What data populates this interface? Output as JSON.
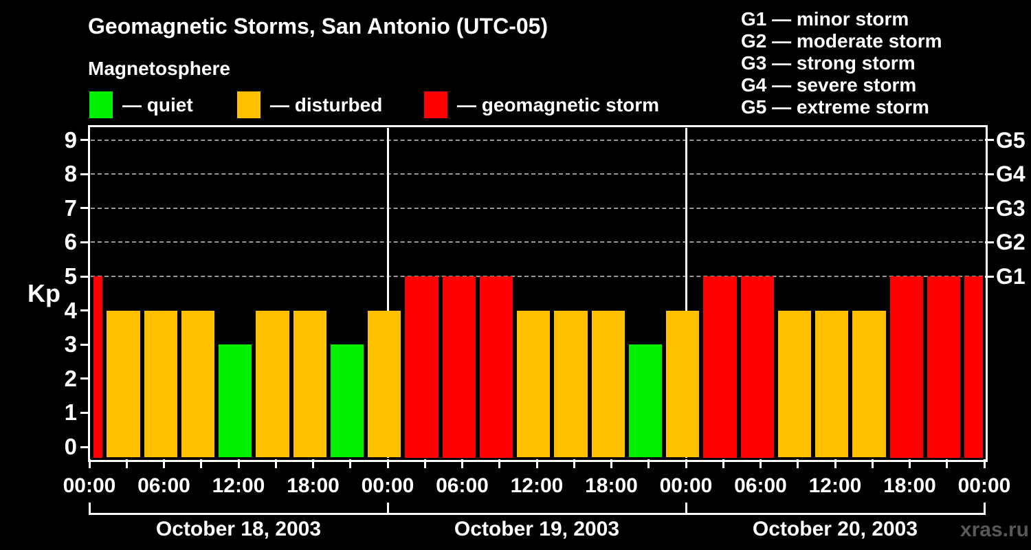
{
  "watermark": "xras.ru",
  "chart_data": {
    "type": "bar",
    "title": "Geomagnetic Storms, San Antonio (UTC-05)",
    "subtitle": "Magnetosphere",
    "ylabel": "Kp",
    "ylim": [
      0,
      9
    ],
    "yticks": [
      0,
      1,
      2,
      3,
      4,
      5,
      6,
      7,
      8,
      9
    ],
    "grid_kp": [
      5,
      6,
      7,
      8,
      9
    ],
    "grid_color": "#999999",
    "background_color": "#000000",
    "legend": [
      {
        "key": "quiet",
        "label": "— quiet",
        "color": "#00f000",
        "kp_rule": "Kp ≤ 3"
      },
      {
        "key": "disturbed",
        "label": "— disturbed",
        "color": "#ffc000",
        "kp_rule": "Kp = 4"
      },
      {
        "key": "storm",
        "label": "— geomagnetic storm",
        "color": "#ff0000",
        "kp_rule": "Kp ≥ 5"
      }
    ],
    "g_scale_legend": [
      "G1 — minor storm",
      "G2 — moderate storm",
      "G3 — strong storm",
      "G4 — severe storm",
      "G5 — extreme storm"
    ],
    "right_axis_labels": [
      {
        "label": "G5",
        "kp": 9
      },
      {
        "label": "G4",
        "kp": 8
      },
      {
        "label": "G3",
        "kp": 7
      },
      {
        "label": "G2",
        "kp": 6
      },
      {
        "label": "G1",
        "kp": 5
      }
    ],
    "x_tick_labels": [
      "00:00",
      "06:00",
      "12:00",
      "18:00",
      "00:00",
      "06:00",
      "12:00",
      "18:00",
      "00:00",
      "06:00",
      "12:00",
      "18:00",
      "00:00"
    ],
    "partial_bar_before_first_day": {
      "kp": 5
    },
    "days": [
      {
        "date": "October 18, 2003",
        "kp_3hr": [
          4,
          4,
          4,
          3,
          4,
          4,
          3,
          4
        ]
      },
      {
        "date": "October 19, 2003",
        "kp_3hr": [
          5,
          5,
          5,
          4,
          4,
          4,
          3,
          4
        ]
      },
      {
        "date": "October 20, 2003",
        "kp_3hr": [
          5,
          5,
          4,
          4,
          4,
          5,
          5,
          5
        ]
      }
    ]
  }
}
